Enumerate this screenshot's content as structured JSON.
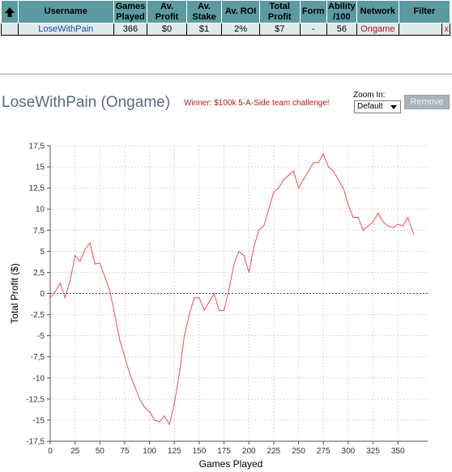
{
  "stats_table": {
    "headers": {
      "username": "Username",
      "games_played": [
        "Games",
        "Played"
      ],
      "avg_profit": [
        "Av.",
        "Profit"
      ],
      "avg_stake": [
        "Av.",
        "Stake"
      ],
      "avg_roi": "Av. ROI",
      "total_profit": [
        "Total",
        "Profit"
      ],
      "form": "Form",
      "ability": [
        "Ability",
        "/100"
      ],
      "network": "Network",
      "filter": "Filter"
    },
    "row": {
      "username": "LoseWithPain",
      "games_played": "366",
      "avg_profit": "$0",
      "avg_stake": "$1",
      "avg_roi": "2%",
      "total_profit": "$7",
      "form": "-",
      "ability": "56",
      "network": "Ongame",
      "filter": "",
      "remove": "x"
    },
    "sort_icon": "up-arrow-icon"
  },
  "player_heading": {
    "title": "LoseWithPain (Ongame)",
    "award": "Winner: $100k 5-A-Side team challenge!"
  },
  "zoom": {
    "label": "Zoom In:",
    "selected": "Default"
  },
  "remove_button": {
    "label": "Remove"
  },
  "colors": {
    "header_bg": "#5b9aa0",
    "row_bg": "#dfeaeb",
    "line": "#f05050",
    "zero_line": "#4040e0",
    "network_text": "#b01818",
    "title_text": "#5a6b7e"
  },
  "chart_data": {
    "type": "line",
    "xlabel": "Games Played",
    "ylabel": "Total Profit ($)",
    "xlim": [
      0,
      366
    ],
    "ylim": [
      -17.5,
      17.5
    ],
    "x_ticks": [
      0,
      25,
      50,
      75,
      100,
      125,
      150,
      175,
      200,
      225,
      250,
      275,
      300,
      325,
      350
    ],
    "y_ticks": [
      -17.5,
      -15,
      -12.5,
      -10,
      -7.5,
      -5,
      -2.5,
      0,
      2.5,
      5,
      7.5,
      10,
      12.5,
      15,
      17.5
    ],
    "y_tick_labels": [
      "-17,5",
      "-15",
      "-12,5",
      "-10",
      "-7,5",
      "-5",
      "-2,5",
      "0",
      "2,5",
      "5",
      "7,5",
      "10",
      "12,5",
      "15",
      "17,5"
    ],
    "grid": true,
    "reference_line_y": 0,
    "series": [
      {
        "x": [
          0,
          5,
          10,
          15,
          20,
          25,
          30,
          35,
          40,
          45,
          50,
          55,
          60,
          65,
          70,
          75,
          80,
          85,
          90,
          95,
          100,
          105,
          110,
          115,
          120,
          125,
          130,
          135,
          140,
          145,
          150,
          155,
          160,
          165,
          170,
          175,
          180,
          185,
          190,
          195,
          200,
          205,
          210,
          215,
          220,
          225,
          230,
          235,
          240,
          245,
          250,
          255,
          260,
          265,
          270,
          275,
          280,
          285,
          290,
          295,
          300,
          305,
          310,
          315,
          320,
          325,
          330,
          335,
          340,
          345,
          350,
          355,
          360,
          366
        ],
        "values": [
          -0.5,
          0.2,
          1.2,
          -0.5,
          1.5,
          4.5,
          3.8,
          5.2,
          6.0,
          3.5,
          3.6,
          2.0,
          0.3,
          -2.5,
          -5.5,
          -7.5,
          -9.5,
          -11.0,
          -12.5,
          -13.5,
          -14.0,
          -15.0,
          -15.2,
          -14.5,
          -15.5,
          -13.0,
          -9.5,
          -5.0,
          -2.5,
          -0.5,
          -0.5,
          -2.0,
          -1.0,
          0.0,
          -2.0,
          -2.0,
          0.5,
          3.5,
          5.0,
          4.5,
          2.5,
          5.5,
          7.5,
          8.0,
          10.0,
          12.0,
          12.5,
          13.5,
          14.0,
          14.5,
          12.5,
          13.5,
          14.5,
          15.5,
          15.5,
          16.5,
          15.0,
          14.5,
          13.5,
          12.5,
          10.5,
          9.0,
          9.0,
          7.5,
          8.0,
          8.5,
          9.5,
          8.5,
          8.0,
          7.8,
          8.2,
          8.0,
          9.0,
          7.0
        ]
      }
    ]
  }
}
